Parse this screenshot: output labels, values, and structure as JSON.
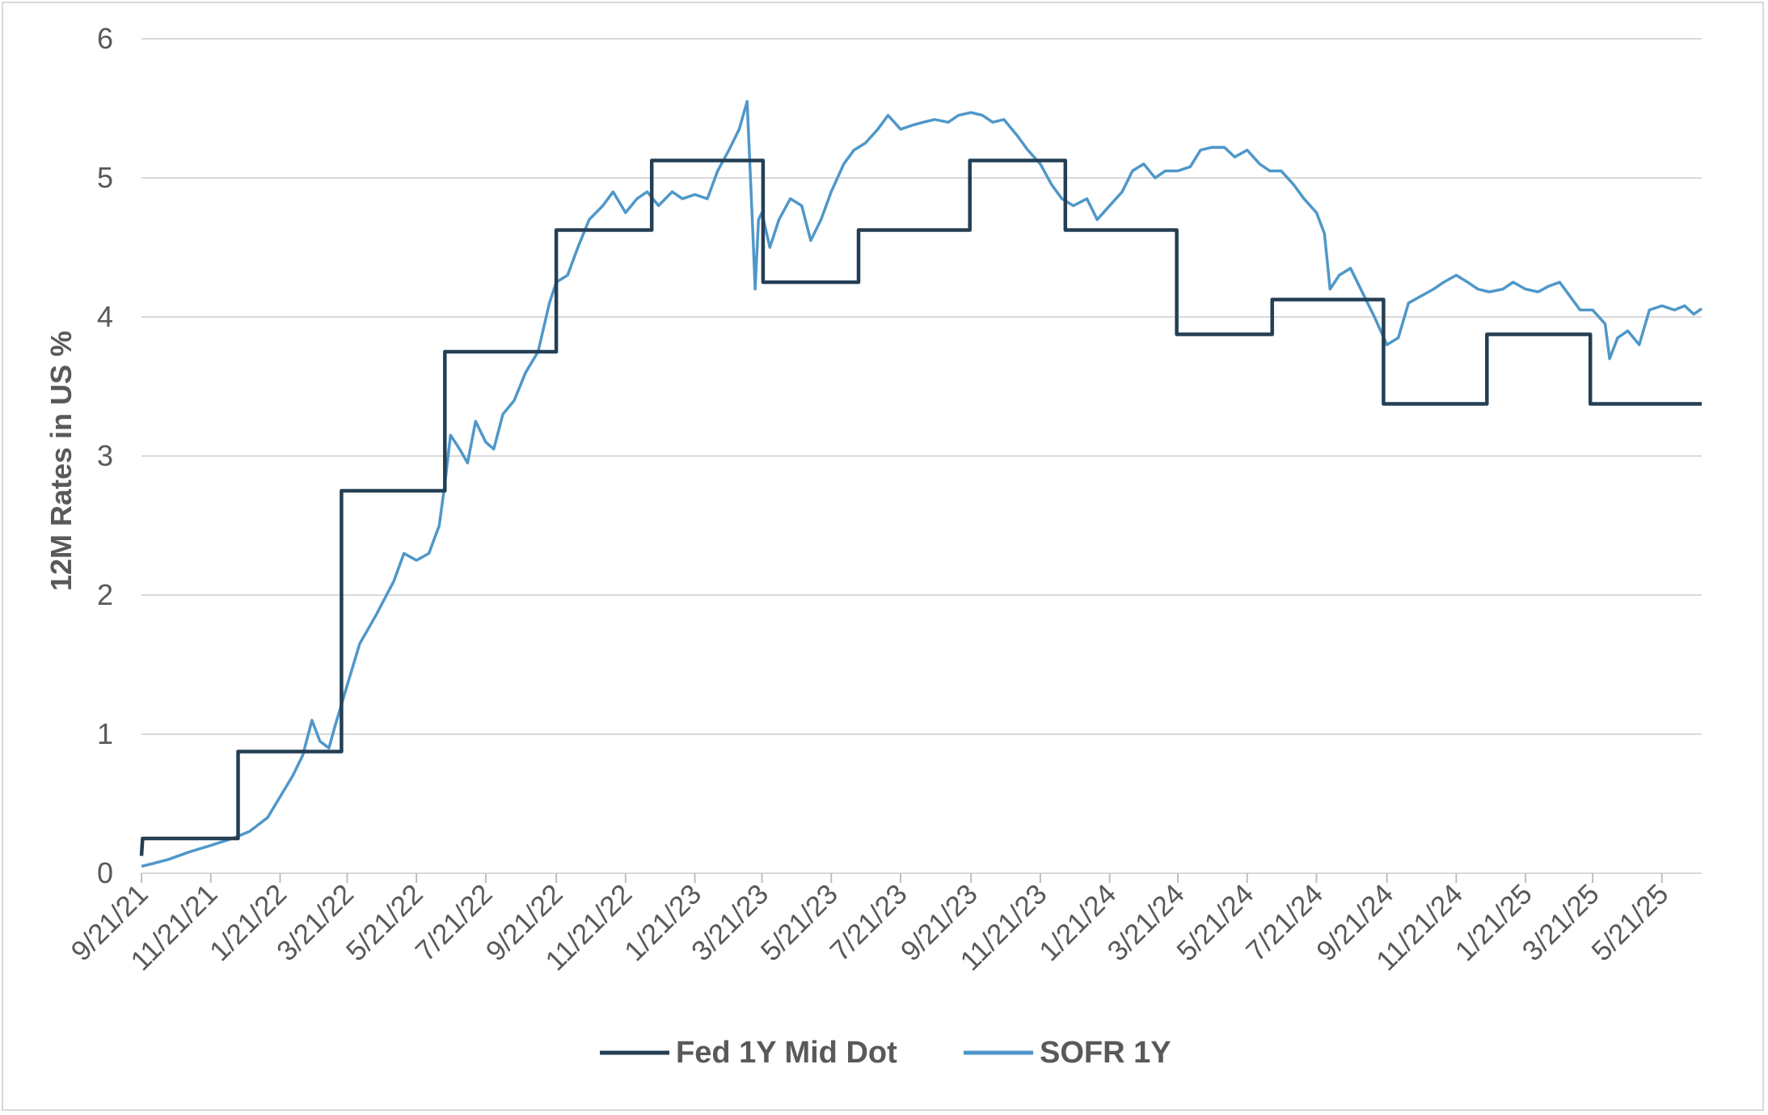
{
  "chart_data": {
    "type": "line",
    "title": "",
    "xlabel": "",
    "ylabel": "12M Rates in US %",
    "ylim": [
      0,
      6
    ],
    "yticks": [
      "0",
      "1",
      "2",
      "3",
      "4",
      "5",
      "6"
    ],
    "xlim": [
      "2021-09-21",
      "2025-06-25"
    ],
    "xticks": [
      {
        "label": "9/21/21",
        "date": "2021-09-21"
      },
      {
        "label": "11/21/21",
        "date": "2021-11-21"
      },
      {
        "label": "1/21/22",
        "date": "2022-01-21"
      },
      {
        "label": "3/21/22",
        "date": "2022-03-21"
      },
      {
        "label": "5/21/22",
        "date": "2022-05-21"
      },
      {
        "label": "7/21/22",
        "date": "2022-07-21"
      },
      {
        "label": "9/21/22",
        "date": "2022-09-21"
      },
      {
        "label": "11/21/22",
        "date": "2022-11-21"
      },
      {
        "label": "1/21/23",
        "date": "2023-01-21"
      },
      {
        "label": "3/21/23",
        "date": "2023-03-21"
      },
      {
        "label": "5/21/23",
        "date": "2023-05-21"
      },
      {
        "label": "7/21/23",
        "date": "2023-07-21"
      },
      {
        "label": "9/21/23",
        "date": "2023-09-21"
      },
      {
        "label": "11/21/23",
        "date": "2023-11-21"
      },
      {
        "label": "1/21/24",
        "date": "2024-01-21"
      },
      {
        "label": "3/21/24",
        "date": "2024-03-21"
      },
      {
        "label": "5/21/24",
        "date": "2024-05-21"
      },
      {
        "label": "7/21/24",
        "date": "2024-07-21"
      },
      {
        "label": "9/21/24",
        "date": "2024-09-21"
      },
      {
        "label": "11/21/24",
        "date": "2024-11-21"
      },
      {
        "label": "1/21/25",
        "date": "2025-01-21"
      },
      {
        "label": "3/21/25",
        "date": "2025-03-21"
      },
      {
        "label": "5/21/25",
        "date": "2025-05-21"
      }
    ],
    "grid": true,
    "legend_position": "bottom",
    "series": [
      {
        "name": "Fed 1Y Mid Dot",
        "color": "#243f54",
        "style": "step",
        "points": [
          [
            "2021-09-21",
            0.125
          ],
          [
            "2021-09-22",
            0.25
          ],
          [
            "2021-12-15",
            0.25
          ],
          [
            "2021-12-15",
            0.875
          ],
          [
            "2022-03-16",
            0.875
          ],
          [
            "2022-03-16",
            2.75
          ],
          [
            "2022-06-15",
            2.75
          ],
          [
            "2022-06-15",
            3.75
          ],
          [
            "2022-09-21",
            3.75
          ],
          [
            "2022-09-21",
            4.625
          ],
          [
            "2022-12-14",
            4.625
          ],
          [
            "2022-12-14",
            5.125
          ],
          [
            "2023-03-22",
            5.125
          ],
          [
            "2023-03-22",
            4.25
          ],
          [
            "2023-06-14",
            4.25
          ],
          [
            "2023-06-14",
            4.625
          ],
          [
            "2023-09-20",
            4.625
          ],
          [
            "2023-09-20",
            5.125
          ],
          [
            "2023-12-13",
            5.125
          ],
          [
            "2023-12-13",
            4.625
          ],
          [
            "2024-03-20",
            4.625
          ],
          [
            "2024-03-20",
            3.875
          ],
          [
            "2024-06-12",
            3.875
          ],
          [
            "2024-06-12",
            4.125
          ],
          [
            "2024-09-18",
            4.125
          ],
          [
            "2024-09-18",
            3.375
          ],
          [
            "2024-12-18",
            3.375
          ],
          [
            "2024-12-18",
            3.875
          ],
          [
            "2025-03-19",
            3.875
          ],
          [
            "2025-03-19",
            3.375
          ],
          [
            "2025-06-25",
            3.375
          ]
        ]
      },
      {
        "name": "SOFR 1Y",
        "color": "#4f97c9",
        "style": "line",
        "points": [
          [
            "2021-09-21",
            0.05
          ],
          [
            "2021-10-01",
            0.07
          ],
          [
            "2021-10-15",
            0.1
          ],
          [
            "2021-11-01",
            0.15
          ],
          [
            "2021-11-21",
            0.2
          ],
          [
            "2021-12-10",
            0.25
          ],
          [
            "2021-12-25",
            0.3
          ],
          [
            "2022-01-10",
            0.4
          ],
          [
            "2022-01-21",
            0.55
          ],
          [
            "2022-02-01",
            0.7
          ],
          [
            "2022-02-10",
            0.85
          ],
          [
            "2022-02-18",
            1.1
          ],
          [
            "2022-02-25",
            0.95
          ],
          [
            "2022-03-05",
            0.9
          ],
          [
            "2022-03-10",
            1.05
          ],
          [
            "2022-03-21",
            1.35
          ],
          [
            "2022-04-01",
            1.65
          ],
          [
            "2022-04-15",
            1.85
          ],
          [
            "2022-05-01",
            2.1
          ],
          [
            "2022-05-10",
            2.3
          ],
          [
            "2022-05-21",
            2.25
          ],
          [
            "2022-06-01",
            2.3
          ],
          [
            "2022-06-10",
            2.5
          ],
          [
            "2022-06-15",
            2.8
          ],
          [
            "2022-06-20",
            3.15
          ],
          [
            "2022-06-28",
            3.05
          ],
          [
            "2022-07-05",
            2.95
          ],
          [
            "2022-07-12",
            3.25
          ],
          [
            "2022-07-21",
            3.1
          ],
          [
            "2022-07-28",
            3.05
          ],
          [
            "2022-08-05",
            3.3
          ],
          [
            "2022-08-15",
            3.4
          ],
          [
            "2022-08-25",
            3.6
          ],
          [
            "2022-09-05",
            3.75
          ],
          [
            "2022-09-15",
            4.1
          ],
          [
            "2022-09-21",
            4.25
          ],
          [
            "2022-10-01",
            4.3
          ],
          [
            "2022-10-10",
            4.5
          ],
          [
            "2022-10-20",
            4.7
          ],
          [
            "2022-11-01",
            4.8
          ],
          [
            "2022-11-10",
            4.9
          ],
          [
            "2022-11-21",
            4.75
          ],
          [
            "2022-12-01",
            4.85
          ],
          [
            "2022-12-10",
            4.9
          ],
          [
            "2022-12-20",
            4.8
          ],
          [
            "2023-01-01",
            4.9
          ],
          [
            "2023-01-10",
            4.85
          ],
          [
            "2023-01-21",
            4.88
          ],
          [
            "2023-02-01",
            4.85
          ],
          [
            "2023-02-10",
            5.05
          ],
          [
            "2023-02-20",
            5.2
          ],
          [
            "2023-03-01",
            5.35
          ],
          [
            "2023-03-08",
            5.55
          ],
          [
            "2023-03-13",
            4.6
          ],
          [
            "2023-03-15",
            4.2
          ],
          [
            "2023-03-18",
            4.7
          ],
          [
            "2023-03-21",
            4.75
          ],
          [
            "2023-03-28",
            4.5
          ],
          [
            "2023-04-05",
            4.7
          ],
          [
            "2023-04-15",
            4.85
          ],
          [
            "2023-04-25",
            4.8
          ],
          [
            "2023-05-03",
            4.55
          ],
          [
            "2023-05-12",
            4.7
          ],
          [
            "2023-05-21",
            4.9
          ],
          [
            "2023-06-01",
            5.1
          ],
          [
            "2023-06-10",
            5.2
          ],
          [
            "2023-06-20",
            5.25
          ],
          [
            "2023-07-01",
            5.35
          ],
          [
            "2023-07-10",
            5.45
          ],
          [
            "2023-07-21",
            5.35
          ],
          [
            "2023-08-01",
            5.38
          ],
          [
            "2023-08-10",
            5.4
          ],
          [
            "2023-08-20",
            5.42
          ],
          [
            "2023-09-01",
            5.4
          ],
          [
            "2023-09-10",
            5.45
          ],
          [
            "2023-09-21",
            5.47
          ],
          [
            "2023-10-01",
            5.45
          ],
          [
            "2023-10-10",
            5.4
          ],
          [
            "2023-10-20",
            5.42
          ],
          [
            "2023-11-01",
            5.3
          ],
          [
            "2023-11-10",
            5.2
          ],
          [
            "2023-11-21",
            5.1
          ],
          [
            "2023-12-01",
            4.95
          ],
          [
            "2023-12-10",
            4.85
          ],
          [
            "2023-12-20",
            4.8
          ],
          [
            "2024-01-01",
            4.85
          ],
          [
            "2024-01-10",
            4.7
          ],
          [
            "2024-01-21",
            4.8
          ],
          [
            "2024-02-01",
            4.9
          ],
          [
            "2024-02-10",
            5.05
          ],
          [
            "2024-02-20",
            5.1
          ],
          [
            "2024-03-01",
            5.0
          ],
          [
            "2024-03-10",
            5.05
          ],
          [
            "2024-03-21",
            5.05
          ],
          [
            "2024-04-01",
            5.08
          ],
          [
            "2024-04-10",
            5.2
          ],
          [
            "2024-04-20",
            5.22
          ],
          [
            "2024-05-01",
            5.22
          ],
          [
            "2024-05-10",
            5.15
          ],
          [
            "2024-05-21",
            5.2
          ],
          [
            "2024-06-01",
            5.1
          ],
          [
            "2024-06-10",
            5.05
          ],
          [
            "2024-06-20",
            5.05
          ],
          [
            "2024-07-01",
            4.95
          ],
          [
            "2024-07-10",
            4.85
          ],
          [
            "2024-07-21",
            4.75
          ],
          [
            "2024-07-28",
            4.6
          ],
          [
            "2024-08-02",
            4.2
          ],
          [
            "2024-08-10",
            4.3
          ],
          [
            "2024-08-20",
            4.35
          ],
          [
            "2024-09-01",
            4.15
          ],
          [
            "2024-09-10",
            4.0
          ],
          [
            "2024-09-21",
            3.8
          ],
          [
            "2024-10-01",
            3.85
          ],
          [
            "2024-10-10",
            4.1
          ],
          [
            "2024-10-21",
            4.15
          ],
          [
            "2024-11-01",
            4.2
          ],
          [
            "2024-11-10",
            4.25
          ],
          [
            "2024-11-21",
            4.3
          ],
          [
            "2024-12-01",
            4.25
          ],
          [
            "2024-12-10",
            4.2
          ],
          [
            "2024-12-20",
            4.18
          ],
          [
            "2025-01-01",
            4.2
          ],
          [
            "2025-01-10",
            4.25
          ],
          [
            "2025-01-21",
            4.2
          ],
          [
            "2025-02-01",
            4.18
          ],
          [
            "2025-02-10",
            4.22
          ],
          [
            "2025-02-20",
            4.25
          ],
          [
            "2025-03-01",
            4.15
          ],
          [
            "2025-03-10",
            4.05
          ],
          [
            "2025-03-21",
            4.05
          ],
          [
            "2025-04-01",
            3.95
          ],
          [
            "2025-04-05",
            3.7
          ],
          [
            "2025-04-12",
            3.85
          ],
          [
            "2025-04-21",
            3.9
          ],
          [
            "2025-05-01",
            3.8
          ],
          [
            "2025-05-10",
            4.05
          ],
          [
            "2025-05-21",
            4.08
          ],
          [
            "2025-06-01",
            4.05
          ],
          [
            "2025-06-10",
            4.08
          ],
          [
            "2025-06-18",
            4.02
          ],
          [
            "2025-06-25",
            4.06
          ]
        ]
      }
    ]
  }
}
